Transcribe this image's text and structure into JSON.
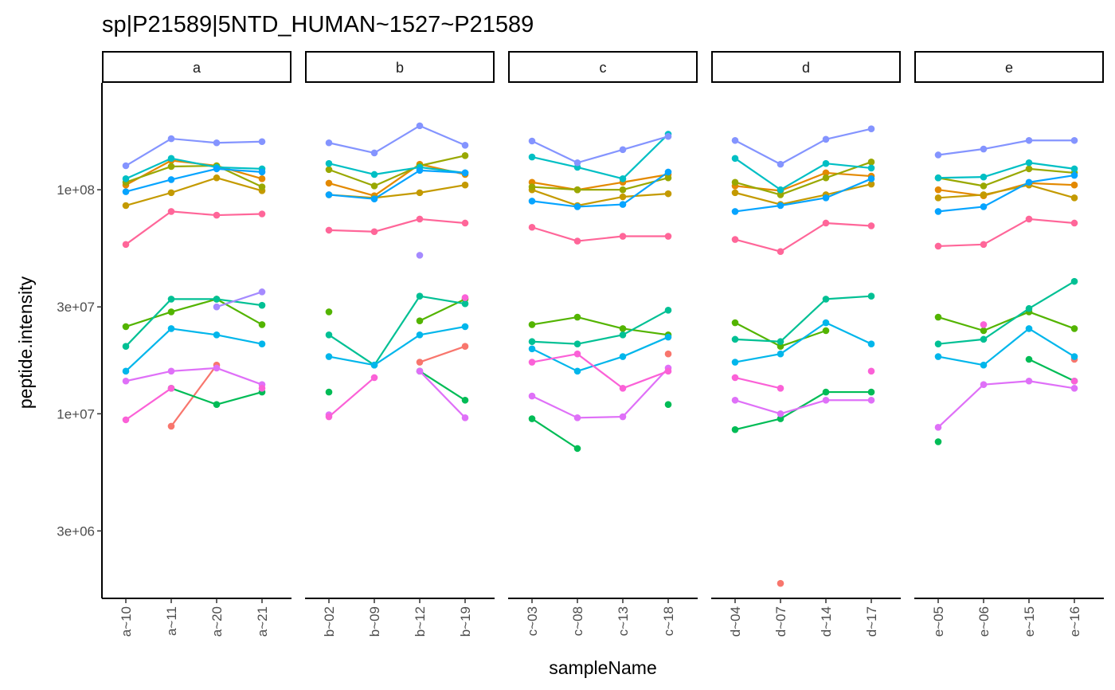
{
  "chart_data": {
    "type": "line",
    "title": "sp|P21589|5NTD_HUMAN~1527~P21589",
    "xlabel": "sampleName",
    "ylabel": "peptide.intensity",
    "y_scale": "log10",
    "ylim": [
      1500000,
      300000000
    ],
    "y_ticks": [
      3000000,
      10000000,
      30000000,
      100000000
    ],
    "y_tick_labels": [
      "3e+06",
      "1e+07",
      "3e+07",
      "1e+08"
    ],
    "grid": false,
    "legend": "none",
    "facets": [
      {
        "label": "a",
        "categories": [
          "a~10",
          "a~11",
          "a~20",
          "a~21"
        ]
      },
      {
        "label": "b",
        "categories": [
          "b~02",
          "b~09",
          "b~12",
          "b~19"
        ]
      },
      {
        "label": "c",
        "categories": [
          "c~03",
          "c~08",
          "c~13",
          "c~18"
        ]
      },
      {
        "label": "d",
        "categories": [
          "d~04",
          "d~07",
          "d~14",
          "d~17"
        ]
      },
      {
        "label": "e",
        "categories": [
          "e~05",
          "e~06",
          "e~15",
          "e~16"
        ]
      }
    ],
    "series": [
      {
        "color": "#F8766D",
        "values": [
          [
            null,
            8800000,
            16500000,
            null
          ],
          [
            null,
            null,
            17000000,
            20000000
          ],
          [
            null,
            null,
            null,
            18500000
          ],
          [
            null,
            1750000,
            null,
            null
          ],
          [
            null,
            null,
            null,
            17500000
          ]
        ]
      },
      {
        "color": "#E38900",
        "values": [
          [
            105000000,
            135000000,
            128000000,
            112000000
          ],
          [
            107000000,
            94000000,
            130000000,
            117000000
          ],
          [
            108000000,
            100000000,
            108000000,
            117000000
          ],
          [
            104000000,
            99000000,
            119000000,
            115000000
          ],
          [
            100000000,
            94000000,
            107000000,
            105000000
          ]
        ]
      },
      {
        "color": "#C49A00",
        "values": [
          [
            85000000,
            97000000,
            113000000,
            99000000
          ],
          [
            95000000,
            92000000,
            97000000,
            105000000
          ],
          [
            100000000,
            85000000,
            93000000,
            96000000
          ],
          [
            97000000,
            86000000,
            95000000,
            106000000
          ],
          [
            92000000,
            95000000,
            105000000,
            92000000
          ]
        ]
      },
      {
        "color": "#99A800",
        "values": [
          [
            108000000,
            127000000,
            128000000,
            103000000
          ],
          [
            123000000,
            104000000,
            128000000,
            142000000
          ],
          [
            103000000,
            100000000,
            100000000,
            113000000
          ],
          [
            108000000,
            95000000,
            113000000,
            133000000
          ],
          [
            113000000,
            104000000,
            124000000,
            119000000
          ]
        ]
      },
      {
        "color": "#53B400",
        "values": [
          [
            24500000,
            28500000,
            32500000,
            25000000
          ],
          [
            28500000,
            null,
            26000000,
            32500000
          ],
          [
            25000000,
            27000000,
            24000000,
            22500000
          ],
          [
            25500000,
            20000000,
            23500000,
            null
          ],
          [
            27000000,
            23500000,
            28500000,
            24000000
          ]
        ]
      },
      {
        "color": "#00BC56",
        "values": [
          [
            null,
            13000000,
            11000000,
            12500000
          ],
          [
            12500000,
            null,
            15500000,
            11500000
          ],
          [
            9500000,
            7000000,
            null,
            11000000
          ],
          [
            8500000,
            9500000,
            12500000,
            12500000
          ],
          [
            7500000,
            null,
            17500000,
            14000000
          ]
        ]
      },
      {
        "color": "#00C094",
        "values": [
          [
            20000000,
            32500000,
            32500000,
            30500000
          ],
          [
            22500000,
            16500000,
            33500000,
            31000000
          ],
          [
            21000000,
            20500000,
            22500000,
            29000000
          ],
          [
            21500000,
            21000000,
            32500000,
            33500000
          ],
          [
            20500000,
            21500000,
            29500000,
            39000000
          ]
        ]
      },
      {
        "color": "#00BFC4",
        "values": [
          [
            112000000,
            138000000,
            126000000,
            124000000
          ],
          [
            131000000,
            117000000,
            126000000,
            119000000
          ],
          [
            140000000,
            126000000,
            112000000,
            177000000
          ],
          [
            138000000,
            100000000,
            131000000,
            125000000
          ],
          [
            113000000,
            114000000,
            132000000,
            124000000
          ]
        ]
      },
      {
        "color": "#00B6EB",
        "values": [
          [
            15500000,
            24000000,
            22500000,
            20500000
          ],
          [
            18000000,
            16500000,
            22500000,
            24500000
          ],
          [
            19500000,
            15500000,
            18000000,
            22000000
          ],
          [
            17000000,
            18500000,
            25500000,
            20500000
          ],
          [
            18000000,
            16500000,
            24000000,
            18000000
          ]
        ]
      },
      {
        "color": "#06A4FF",
        "values": [
          [
            98000000,
            111000000,
            124000000,
            120000000
          ],
          [
            95000000,
            91000000,
            122000000,
            119000000
          ],
          [
            89000000,
            84000000,
            86000000,
            120000000
          ],
          [
            80000000,
            85000000,
            92000000,
            112000000
          ],
          [
            80000000,
            84000000,
            108000000,
            116000000
          ]
        ]
      },
      {
        "color": "#A58AFF",
        "values": [
          [
            null,
            null,
            30000000,
            35000000
          ],
          [
            null,
            null,
            51000000,
            null
          ],
          [
            null,
            null,
            null,
            null
          ],
          [
            null,
            null,
            null,
            null
          ],
          [
            null,
            null,
            null,
            null
          ]
        ]
      },
      {
        "color": "#DF70F8",
        "values": [
          [
            14000000,
            15500000,
            16000000,
            13500000
          ],
          [
            9900000,
            null,
            15500000,
            9600000
          ],
          [
            12000000,
            9600000,
            9700000,
            16000000
          ],
          [
            11500000,
            10000000,
            11500000,
            11500000
          ],
          [
            8700000,
            13500000,
            14000000,
            13000000
          ]
        ]
      },
      {
        "color": "#FB61D7",
        "values": [
          [
            9400000,
            13000000,
            null,
            13000000
          ],
          [
            9700000,
            14500000,
            null,
            33000000
          ],
          [
            17000000,
            18500000,
            13000000,
            15500000
          ],
          [
            14500000,
            13000000,
            null,
            15500000
          ],
          [
            null,
            25000000,
            null,
            14000000
          ]
        ]
      },
      {
        "color": "#FF6699",
        "values": [
          [
            57000000,
            80000000,
            77000000,
            78000000
          ],
          [
            66000000,
            65000000,
            74000000,
            71000000
          ],
          [
            68000000,
            59000000,
            62000000,
            62000000
          ],
          [
            60000000,
            53000000,
            71000000,
            69000000
          ],
          [
            56000000,
            57000000,
            74000000,
            71000000
          ]
        ]
      },
      {
        "color": "#8494FF",
        "values": [
          [
            128000000,
            169000000,
            162000000,
            164000000
          ],
          [
            162000000,
            146000000,
            193000000,
            158000000
          ],
          [
            165000000,
            132000000,
            151000000,
            173000000
          ],
          [
            166000000,
            130000000,
            168000000,
            187000000
          ],
          [
            143000000,
            152000000,
            166000000,
            166000000
          ]
        ]
      }
    ]
  }
}
